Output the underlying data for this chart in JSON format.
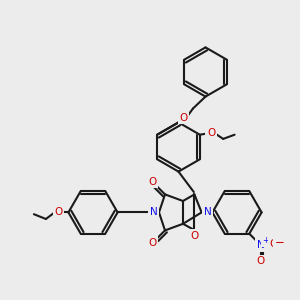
{
  "bg": "#ececec",
  "bc": "#1a1a1a",
  "nc": "#1010ee",
  "oc": "#cc0000",
  "lw": 1.5,
  "r": 0.082,
  "xlim": [
    0,
    1
  ],
  "ylim": [
    0,
    1
  ]
}
